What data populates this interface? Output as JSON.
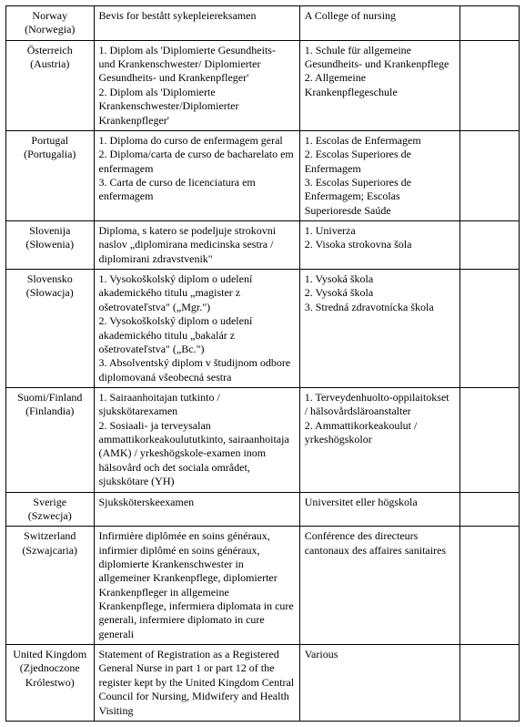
{
  "table": {
    "rows": [
      {
        "country_main": "Norway",
        "country_sub": "(Norwegia)",
        "diploma": "Bevis for bestått sykepleiereksamen",
        "body": "A College of nursing",
        "extra": ""
      },
      {
        "country_main": "Österreich",
        "country_sub": "(Austria)",
        "diploma": "1. Diplom als 'Diplomierte Gesundheits- und Krankenschwester/ Diplomierter Gesundheits- und Krankenpfleger'\n2. Diplom als 'Diplomierte Krankenschwester/Diplomierter Krankenpfleger'",
        "body": "1. Schule für allgemeine Gesundheits- und Krankenpflege\n2. Allgemeine Krankenpflegeschule",
        "extra": ""
      },
      {
        "country_main": "Portugal",
        "country_sub": "(Portugalia)",
        "diploma": "1. Diploma do curso de enfermagem geral\n2. Diploma/carta de curso de bacharelato em enfermagem\n3. Carta de curso de licenciatura em enfermagem",
        "body": "1. Escolas de Enfermagem\n2. Escolas Superiores de Enfermagem\n3. Escolas Superiores de Enfermagem; Escolas Superioresde Saúde",
        "extra": ""
      },
      {
        "country_main": "Slovenija",
        "country_sub": "(Słowenia)",
        "diploma": "Diploma, s katero se podeljuje strokovni naslov „diplomirana medicinska sestra / diplomirani zdravstvenik\"",
        "body": "1. Univerza\n2. Visoka strokovna šola",
        "extra": ""
      },
      {
        "country_main": "Slovensko",
        "country_sub": "(Słowacja)",
        "diploma": "1. Vysokoškolský diplom o udelení akademického titulu „magister z ošetrovateľstva\" („Mgr.\")\n2. Vysokoškolský diplom o udelení akademického titulu „bakalár z ošetrovateľstva\" („Bc.\")\n3. Absolventský diplom v študijnom odbore diplomovaná všeobecná sestra",
        "body": "1. Vysoká škola\n2. Vysoká škola\n3. Stredná zdravotnícka škola",
        "extra": ""
      },
      {
        "country_main": "Suomi/Finland",
        "country_sub": "(Finlandia)",
        "diploma": "1. Sairaanhoitajan tutkinto / sjukskötarexamen\n2. Sosiaali- ja terveysalan ammattikorkeakoulututkinto, sairaanhoitaja (AMK) / yrkeshögskole-examen inom hälsovård och det sociala området, sjukskötare (YH)",
        "body": "1. Terveydenhuolto-oppilaitokset / hälsovårdsläroanstalter\n2. Ammattikorkeakoulut / yrkeshögskolor",
        "extra": ""
      },
      {
        "country_main": "Sverige",
        "country_sub": "(Szwecja)",
        "diploma": "Sjuksköterskeexamen",
        "body": "Universitet eller högskola",
        "extra": ""
      },
      {
        "country_main": "Switzerland",
        "country_sub": "(Szwajcaria)",
        "diploma": "Infirmière diplômée en soins généraux, infirmier diplômé en soins généraux, diplomierte Krankenschwester in allgemeiner Krankenpflege, diplomierter Krankenpfleger in allgemeine Krankenpflege, infermiera diplomata in cure generali, infermiere diplomato in cure generali",
        "body": "Conférence des directeurs cantonaux des affaires sanitaires",
        "extra": ""
      },
      {
        "country_main": "United Kingdom",
        "country_sub": "(Zjednoczone Królestwo)",
        "diploma": "Statement of Registration as a Registered General Nurse in part 1 or part 12 of the register kept by the United Kingdom Central Council for Nursing, Midwifery and Health Visiting",
        "body": "Various",
        "extra": ""
      }
    ]
  }
}
